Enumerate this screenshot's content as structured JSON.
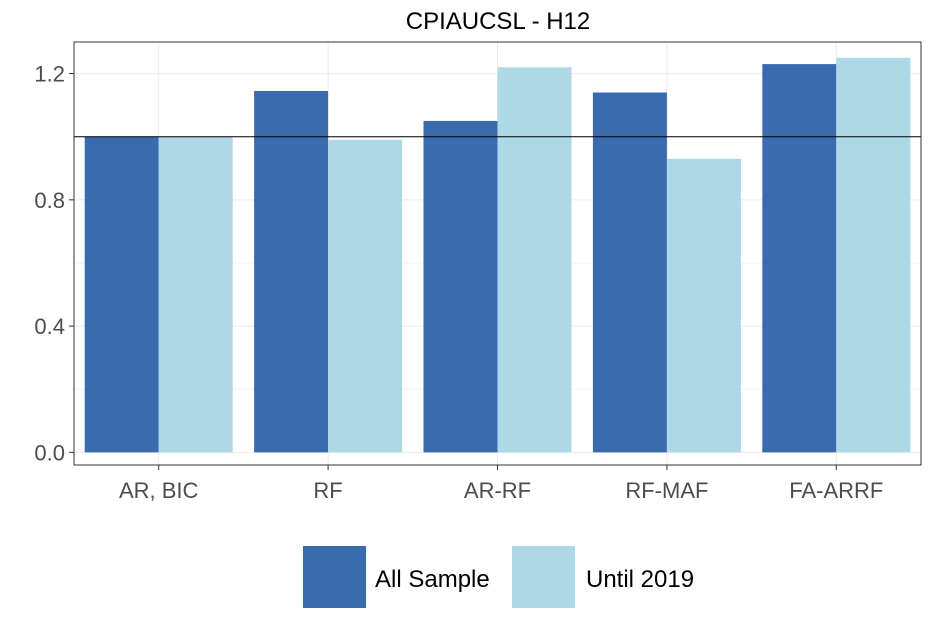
{
  "chart_data": {
    "type": "bar",
    "title": "CPIAUCSL - H12",
    "xlabel": "",
    "ylabel": "",
    "categories": [
      "AR, BIC",
      "RF",
      "AR-RF",
      "RF-MAF",
      "FA-ARRF"
    ],
    "series": [
      {
        "name": "All Sample",
        "color": "#3A6BAF",
        "values": [
          1.0,
          1.145,
          1.05,
          1.14,
          1.23
        ]
      },
      {
        "name": "Until 2019",
        "color": "#ADD8E6",
        "values": [
          1.0,
          0.99,
          1.22,
          0.93,
          1.25
        ]
      }
    ],
    "yticks": [
      0.0,
      0.4,
      0.8,
      1.2
    ],
    "ytick_labels": [
      "0.0",
      "0.4",
      "0.8",
      "1.2"
    ],
    "ylim": [
      -0.04,
      1.3
    ],
    "reference_line": 1.0,
    "grid": true,
    "legend_position": "bottom"
  }
}
